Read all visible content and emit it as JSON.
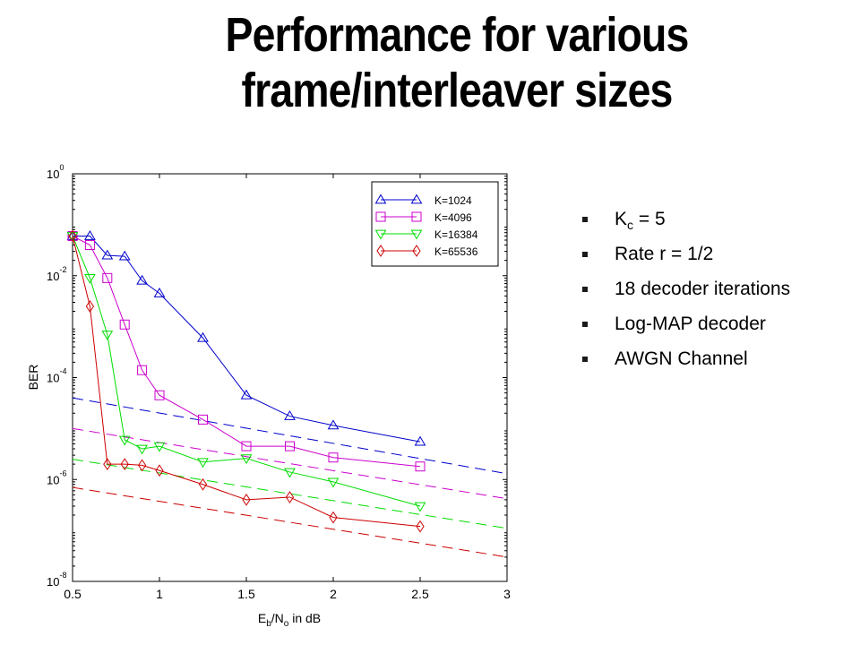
{
  "title": {
    "line1": "Performance for various",
    "line2": "frame/interleaver sizes"
  },
  "bullets": {
    "kc": {
      "base": "K",
      "sub": "c",
      "rest": " = 5"
    },
    "items": [
      "Rate r = 1/2",
      "18 decoder iterations",
      "Log-MAP decoder",
      "AWGN Channel"
    ]
  },
  "chart_data": {
    "type": "line",
    "xlabel": {
      "E": "E",
      "b": "b",
      "N": "/N",
      "o": "o",
      "rest": " in dB"
    },
    "ylabel": "BER",
    "xlim": [
      0.5,
      3
    ],
    "ylim_log10": [
      -8,
      0
    ],
    "yscale": "log",
    "x_ticks": [
      "0.5",
      "1",
      "1.5",
      "2",
      "2.5",
      "3"
    ],
    "y_ticks": [
      {
        "exp": -8,
        "base": "10",
        "sup": "-8"
      },
      {
        "exp": -6,
        "base": "10",
        "sup": "-6"
      },
      {
        "exp": -4,
        "base": "10",
        "sup": "-4"
      },
      {
        "exp": -2,
        "base": "10",
        "sup": "-2"
      },
      {
        "exp": 0,
        "base": "10",
        "sup": "0"
      }
    ],
    "legend_position": "top-right",
    "series": [
      {
        "name": "K=1024",
        "color": "#0000cc",
        "marker": "triangle-up",
        "x": [
          0.5,
          0.6,
          0.7,
          0.8,
          0.9,
          1.0,
          1.25,
          1.5,
          1.75,
          2.0,
          2.5
        ],
        "y": [
          0.06,
          0.06,
          0.025,
          0.024,
          0.008,
          0.0045,
          0.0006,
          4.5e-05,
          1.75e-05,
          1.15e-05,
          5.5e-06
        ],
        "bound": [
          [
            0.5,
            4e-05
          ],
          [
            3,
            1.3e-06
          ]
        ]
      },
      {
        "name": "K=4096",
        "color": "#cc00cc",
        "marker": "square",
        "x": [
          0.5,
          0.6,
          0.7,
          0.8,
          0.9,
          1.0,
          1.25,
          1.5,
          1.75,
          2.0,
          2.5
        ],
        "y": [
          0.06,
          0.04,
          0.009,
          0.0011,
          0.00014,
          4.5e-05,
          1.5e-05,
          4.5e-06,
          4.5e-06,
          2.7e-06,
          1.8e-06
        ],
        "bound": [
          [
            0.5,
            1e-05
          ],
          [
            3,
            4.2e-07
          ]
        ]
      },
      {
        "name": "K=16384",
        "color": "#00dd00",
        "marker": "triangle-down",
        "x": [
          0.5,
          0.6,
          0.7,
          0.8,
          0.9,
          1.0,
          1.25,
          1.5,
          1.75,
          2.0,
          2.5
        ],
        "y": [
          0.06,
          0.009,
          0.0007,
          6e-06,
          4e-06,
          4.5e-06,
          2.2e-06,
          2.6e-06,
          1.4e-06,
          9e-07,
          3e-07
        ],
        "bound": [
          [
            0.5,
            2.5e-06
          ],
          [
            3,
            1.1e-07
          ]
        ]
      },
      {
        "name": "K=65536",
        "color": "#cc0000",
        "marker": "diamond",
        "x": [
          0.5,
          0.6,
          0.7,
          0.8,
          0.9,
          1.0,
          1.25,
          1.5,
          1.75,
          2.0,
          2.5
        ],
        "y": [
          0.06,
          0.0025,
          2e-06,
          2e-06,
          1.9e-06,
          1.5e-06,
          8e-07,
          4e-07,
          4.5e-07,
          1.8e-07,
          1.2e-07
        ],
        "bound": [
          [
            0.5,
            7e-07
          ],
          [
            3,
            3e-08
          ]
        ]
      }
    ]
  }
}
